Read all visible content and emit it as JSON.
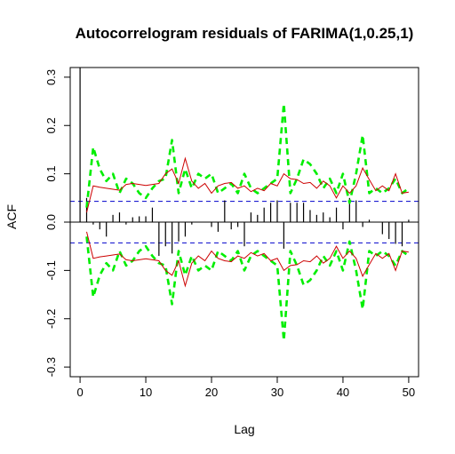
{
  "chart_data": {
    "type": "bar",
    "title": "Autocorrelogram residuals of FARIMA(1,0.25,1)",
    "xlabel": "Lag",
    "ylabel": "ACF",
    "xlim": [
      -1.5,
      51.5
    ],
    "ylim": [
      -0.32,
      0.32
    ],
    "x_ticks": [
      0,
      10,
      20,
      30,
      40,
      50
    ],
    "y_ticks": [
      -0.3,
      -0.2,
      -0.1,
      0.0,
      0.1,
      0.2,
      0.3
    ],
    "y_tick_labels": [
      "-0.3",
      "-0.2",
      "-0.1",
      "0.0",
      "0.1",
      "0.2",
      "0.3"
    ],
    "confidence_bound": 0.043,
    "lags": [
      0,
      1,
      2,
      3,
      4,
      5,
      6,
      7,
      8,
      9,
      10,
      11,
      12,
      13,
      14,
      15,
      16,
      17,
      18,
      19,
      20,
      21,
      22,
      23,
      24,
      25,
      26,
      27,
      28,
      29,
      30,
      31,
      32,
      33,
      34,
      35,
      36,
      37,
      38,
      39,
      40,
      41,
      42,
      43,
      44,
      45,
      46,
      47,
      48,
      49,
      50
    ],
    "acf": [
      1.0,
      0.05,
      -0.005,
      -0.015,
      -0.03,
      0.015,
      0.02,
      -0.005,
      0.01,
      0.012,
      0.012,
      0.03,
      -0.07,
      -0.05,
      -0.065,
      -0.04,
      -0.03,
      -0.005,
      0.0,
      0.0,
      -0.01,
      -0.02,
      0.045,
      -0.015,
      -0.01,
      -0.05,
      0.02,
      0.015,
      0.03,
      0.04,
      0.045,
      -0.055,
      0.04,
      0.04,
      0.04,
      0.025,
      0.015,
      0.02,
      0.01,
      0.03,
      -0.015,
      0.05,
      0.045,
      -0.01,
      0.005,
      0.0,
      -0.025,
      -0.035,
      -0.045,
      -0.05,
      0.005
    ],
    "series": [
      {
        "lags": [
          1,
          2,
          3,
          4,
          5,
          6,
          7,
          8,
          9,
          10,
          11,
          12,
          13,
          14,
          15,
          16,
          17,
          18,
          19,
          20,
          21,
          22,
          23,
          24,
          25,
          26,
          27,
          28,
          29,
          30,
          31,
          32,
          33,
          34,
          35,
          36,
          37,
          38,
          39,
          40,
          41,
          42,
          43,
          44,
          45,
          46,
          47,
          48,
          49,
          50
        ],
        "upper": [
          0.02,
          0.075,
          0.072,
          0.07,
          0.068,
          0.066,
          0.078,
          0.08,
          0.078,
          0.076,
          0.078,
          0.08,
          0.1,
          0.11,
          0.08,
          0.132,
          0.085,
          0.07,
          0.08,
          0.06,
          0.075,
          0.08,
          0.082,
          0.07,
          0.075,
          0.063,
          0.07,
          0.065,
          0.08,
          0.075,
          0.1,
          0.09,
          0.088,
          0.08,
          0.082,
          0.07,
          0.085,
          0.075,
          0.05,
          0.075,
          0.06,
          0.075,
          0.112,
          0.088,
          0.065,
          0.075,
          0.065,
          0.1,
          0.06,
          0.062
        ],
        "green": [
          0.03,
          0.155,
          0.11,
          0.085,
          0.1,
          0.06,
          0.09,
          0.08,
          0.06,
          0.05,
          0.07,
          0.085,
          0.09,
          0.17,
          0.06,
          0.11,
          0.07,
          0.1,
          0.09,
          0.1,
          0.06,
          0.07,
          0.08,
          0.06,
          0.1,
          0.07,
          0.06,
          0.07,
          0.08,
          0.09,
          0.245,
          0.06,
          0.09,
          0.13,
          0.12,
          0.1,
          0.07,
          0.09,
          0.06,
          0.1,
          0.04,
          0.1,
          0.18,
          0.06,
          0.07,
          0.06,
          0.07,
          0.09,
          0.06,
          0.07
        ]
      }
    ],
    "legend": "none",
    "grid": false
  }
}
